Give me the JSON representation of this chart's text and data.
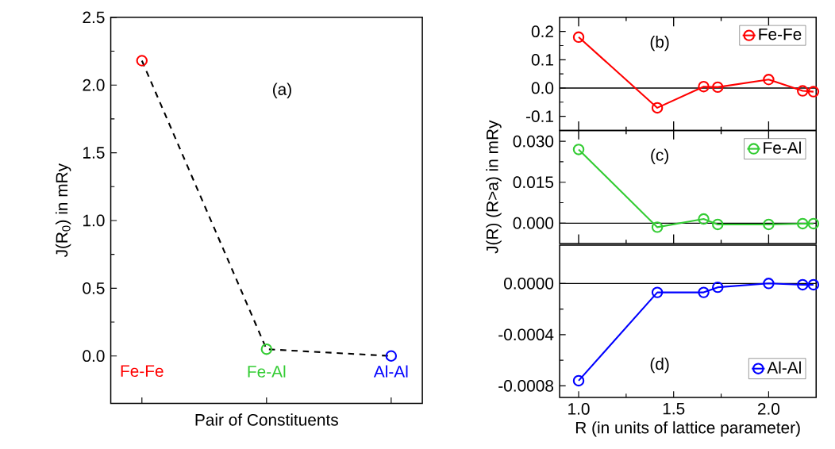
{
  "chart_data": [
    {
      "type": "line",
      "categories": [
        "Fe-Fe",
        "Fe-Al",
        "Al-Al"
      ],
      "xlabel": "Pair of Constituents",
      "ylabel": "J(R$_{0}$) in mRy",
      "annotations": [
        "(a)"
      ],
      "series": [
        {
          "values": [
            2.18,
            0.05,
            0.0
          ],
          "colors": [
            "#ff0000",
            "#33cc33",
            "#0000ff"
          ]
        }
      ],
      "ylim": [
        -0.35,
        2.5
      ],
      "yticks": [
        {
          "value": 0,
          "label": "0.0"
        },
        0.5,
        {
          "value": 1,
          "label": "1.0"
        },
        1.5,
        {
          "value": 2,
          "label": "2.0"
        },
        2.5
      ],
      "marker": "circle",
      "line_style": "dashed"
    },
    {
      "type": "line",
      "x": [
        1.0,
        1.414,
        1.658,
        1.732,
        2.0,
        2.179,
        2.236
      ],
      "annotations": [
        "(b)"
      ],
      "series": [
        {
          "name": "Fe-Fe",
          "color": "#ff0000",
          "values": [
            0.18,
            -0.07,
            0.005,
            0.003,
            0.03,
            -0.01,
            -0.013
          ]
        }
      ],
      "xlim": [
        0.9,
        2.25
      ],
      "ylim": [
        -0.15,
        0.25
      ],
      "yticks": [
        -0.1,
        {
          "value": 0,
          "label": "0.0"
        },
        0.1,
        0.2
      ],
      "ref_lines": [
        {
          "axis": "y",
          "value": 0,
          "color": "#000000"
        }
      ],
      "tick_labels": "y",
      "legend": "top right",
      "marker": "circle",
      "line_style": "solid"
    },
    {
      "type": "line",
      "x": [
        1.0,
        1.414,
        1.658,
        1.732,
        2.0,
        2.179,
        2.236
      ],
      "annotations": [
        "(c)"
      ],
      "ylabel": "J(R) (R>a) in mRy",
      "series": [
        {
          "name": "Fe-Al",
          "color": "#33cc33",
          "values": [
            0.027,
            -0.0015,
            0.0015,
            -0.0005,
            -0.0005,
            -0.0002,
            -0.0002
          ]
        }
      ],
      "xlim": [
        0.9,
        2.25
      ],
      "ylim": [
        -0.0075,
        0.034
      ],
      "yticks": [
        {
          "value": 0,
          "label": "0.000"
        },
        0.015,
        {
          "value": 0.03,
          "label": "0.030"
        }
      ],
      "ref_lines": [
        {
          "axis": "y",
          "value": 0,
          "color": "#000000"
        }
      ],
      "tick_labels": "y",
      "legend": "top right",
      "marker": "circle",
      "line_style": "solid"
    },
    {
      "type": "line",
      "x": [
        1.0,
        1.414,
        1.658,
        1.732,
        2.0,
        2.179,
        2.236
      ],
      "annotations": [
        "(d)"
      ],
      "xlabel": "R (in units of lattice parameter)",
      "series": [
        {
          "name": "Al-Al",
          "color": "#0000ff",
          "values": [
            -0.00076,
            -7e-05,
            -7e-05,
            -3e-05,
            0.0,
            -1e-05,
            -1e-05
          ]
        }
      ],
      "xlim": [
        0.9,
        2.25
      ],
      "xticks": [
        {
          "value": 1,
          "label": "1.0"
        },
        1.5,
        {
          "value": 2,
          "label": "2.0"
        }
      ],
      "ylim": [
        -0.00089,
        0.0003
      ],
      "yticks": [
        {
          "value": -0.0008,
          "label": "-0.0008"
        },
        {
          "value": -0.0004,
          "label": "-0.0004"
        },
        {
          "value": 0,
          "label": "0.0000"
        }
      ],
      "ref_lines": [
        {
          "axis": "y",
          "value": 0,
          "color": "#000000"
        }
      ],
      "legend": "bottom right",
      "marker": "circle",
      "line_style": "solid"
    }
  ]
}
